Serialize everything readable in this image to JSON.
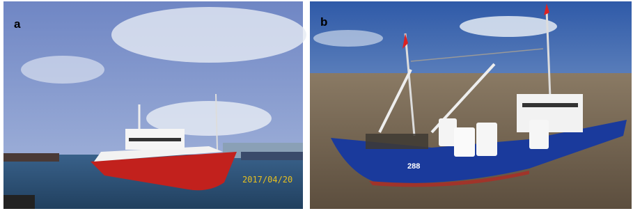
{
  "panels": [
    {
      "label": "a",
      "timestamp": "2017/04/20"
    },
    {
      "label": "b",
      "hull_number": "288"
    }
  ]
}
